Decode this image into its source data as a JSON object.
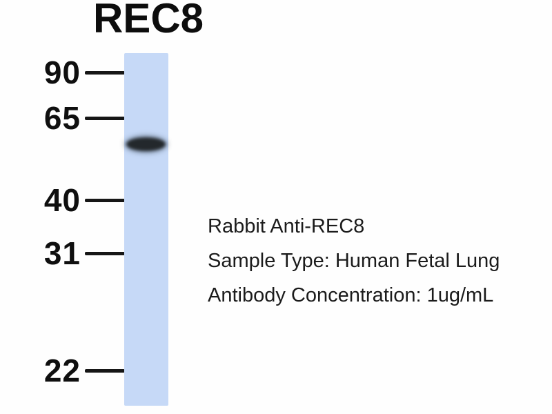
{
  "title": "REC8",
  "markers": [
    {
      "label": "90"
    },
    {
      "label": "65"
    },
    {
      "label": "40"
    },
    {
      "label": "31"
    },
    {
      "label": "22"
    }
  ],
  "band": {
    "lane": 1,
    "present": true
  },
  "annotations": [
    {
      "text": "Rabbit Anti-REC8"
    },
    {
      "text": "Sample Type: Human Fetal Lung"
    },
    {
      "text": "Antibody Concentration: 1ug/mL"
    }
  ],
  "colors": {
    "background": "#fefefe",
    "lane": "#c6d9f7",
    "band": "#23282c",
    "text": "#1b1b1b"
  }
}
